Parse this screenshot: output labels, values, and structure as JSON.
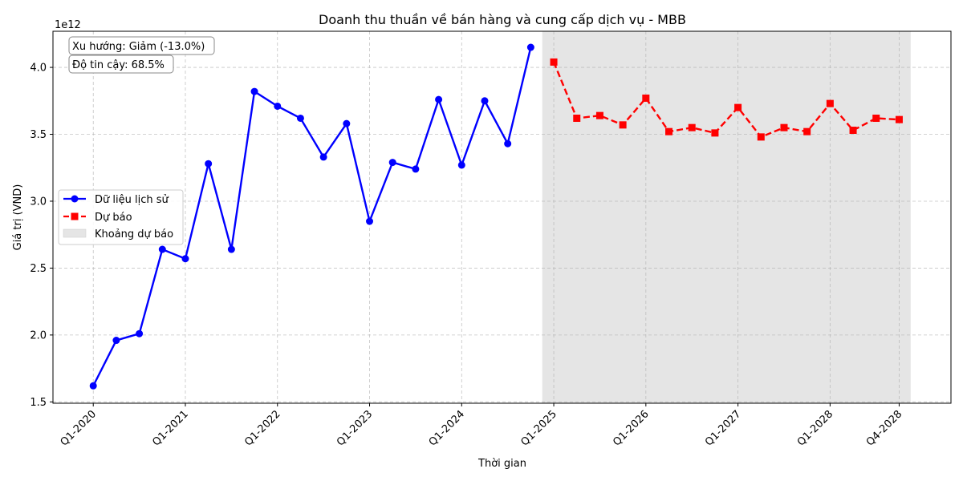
{
  "chart_data": {
    "type": "line",
    "title": "Doanh thu thuần về bán hàng và cung cấp dịch vụ - MBB",
    "xlabel": "Thời gian",
    "ylabel": "Giá trị (VND)",
    "y_offset_label": "1e12",
    "ylim": [
      1.49,
      4.27
    ],
    "y_ticks": [
      1.5,
      2.0,
      2.5,
      3.0,
      3.5,
      4.0
    ],
    "y_tick_labels": [
      "1.5",
      "2.0",
      "2.5",
      "3.0",
      "3.5",
      "4.0"
    ],
    "x_ticks": [
      {
        "label": "Q1-2020",
        "q": 0
      },
      {
        "label": "Q1-2021",
        "q": 4
      },
      {
        "label": "Q1-2022",
        "q": 8
      },
      {
        "label": "Q1-2023",
        "q": 12
      },
      {
        "label": "Q1-2024",
        "q": 16
      },
      {
        "label": "Q1-2025",
        "q": 20
      },
      {
        "label": "Q1-2026",
        "q": 24
      },
      {
        "label": "Q1-2027",
        "q": 28
      },
      {
        "label": "Q1-2028",
        "q": 32
      },
      {
        "label": "Q4-2028",
        "q": 35
      }
    ],
    "grid": true,
    "legend_position": "center-left",
    "series": [
      {
        "name": "Dữ liệu lịch sử",
        "color": "#0000ff",
        "style": "solid",
        "marker": "circle",
        "x": [
          "Q1-2020",
          "Q2-2020",
          "Q3-2020",
          "Q4-2020",
          "Q1-2021",
          "Q2-2021",
          "Q3-2021",
          "Q4-2021",
          "Q1-2022",
          "Q2-2022",
          "Q3-2022",
          "Q4-2022",
          "Q1-2023",
          "Q2-2023",
          "Q3-2023",
          "Q4-2023",
          "Q1-2024",
          "Q2-2024",
          "Q3-2024",
          "Q4-2024"
        ],
        "values": [
          1.62,
          1.96,
          2.01,
          2.64,
          2.57,
          3.28,
          2.64,
          3.82,
          3.71,
          3.62,
          3.33,
          3.58,
          2.85,
          3.29,
          3.24,
          3.76,
          3.27,
          3.75,
          3.43,
          4.15
        ]
      },
      {
        "name": "Dự báo",
        "color": "#ff0000",
        "style": "dashed",
        "marker": "square",
        "x": [
          "Q1-2025",
          "Q2-2025",
          "Q3-2025",
          "Q4-2025",
          "Q1-2026",
          "Q2-2026",
          "Q3-2026",
          "Q4-2026",
          "Q1-2027",
          "Q2-2027",
          "Q3-2027",
          "Q4-2027",
          "Q1-2028",
          "Q2-2028",
          "Q3-2028",
          "Q4-2028"
        ],
        "values": [
          4.04,
          3.62,
          3.64,
          3.57,
          3.77,
          3.52,
          3.55,
          3.51,
          3.7,
          3.48,
          3.55,
          3.52,
          3.73,
          3.53,
          3.62,
          3.61
        ]
      }
    ],
    "forecast_band": {
      "name": "Khoảng dự báo",
      "color": "#d3d3d3",
      "x_start": "Q4-2024",
      "x_end": "Q4-2028"
    },
    "annotations": [
      {
        "text": "Xu hướng: Giảm (-13.0%)"
      },
      {
        "text": "Độ tin cậy: 68.5%"
      }
    ]
  }
}
